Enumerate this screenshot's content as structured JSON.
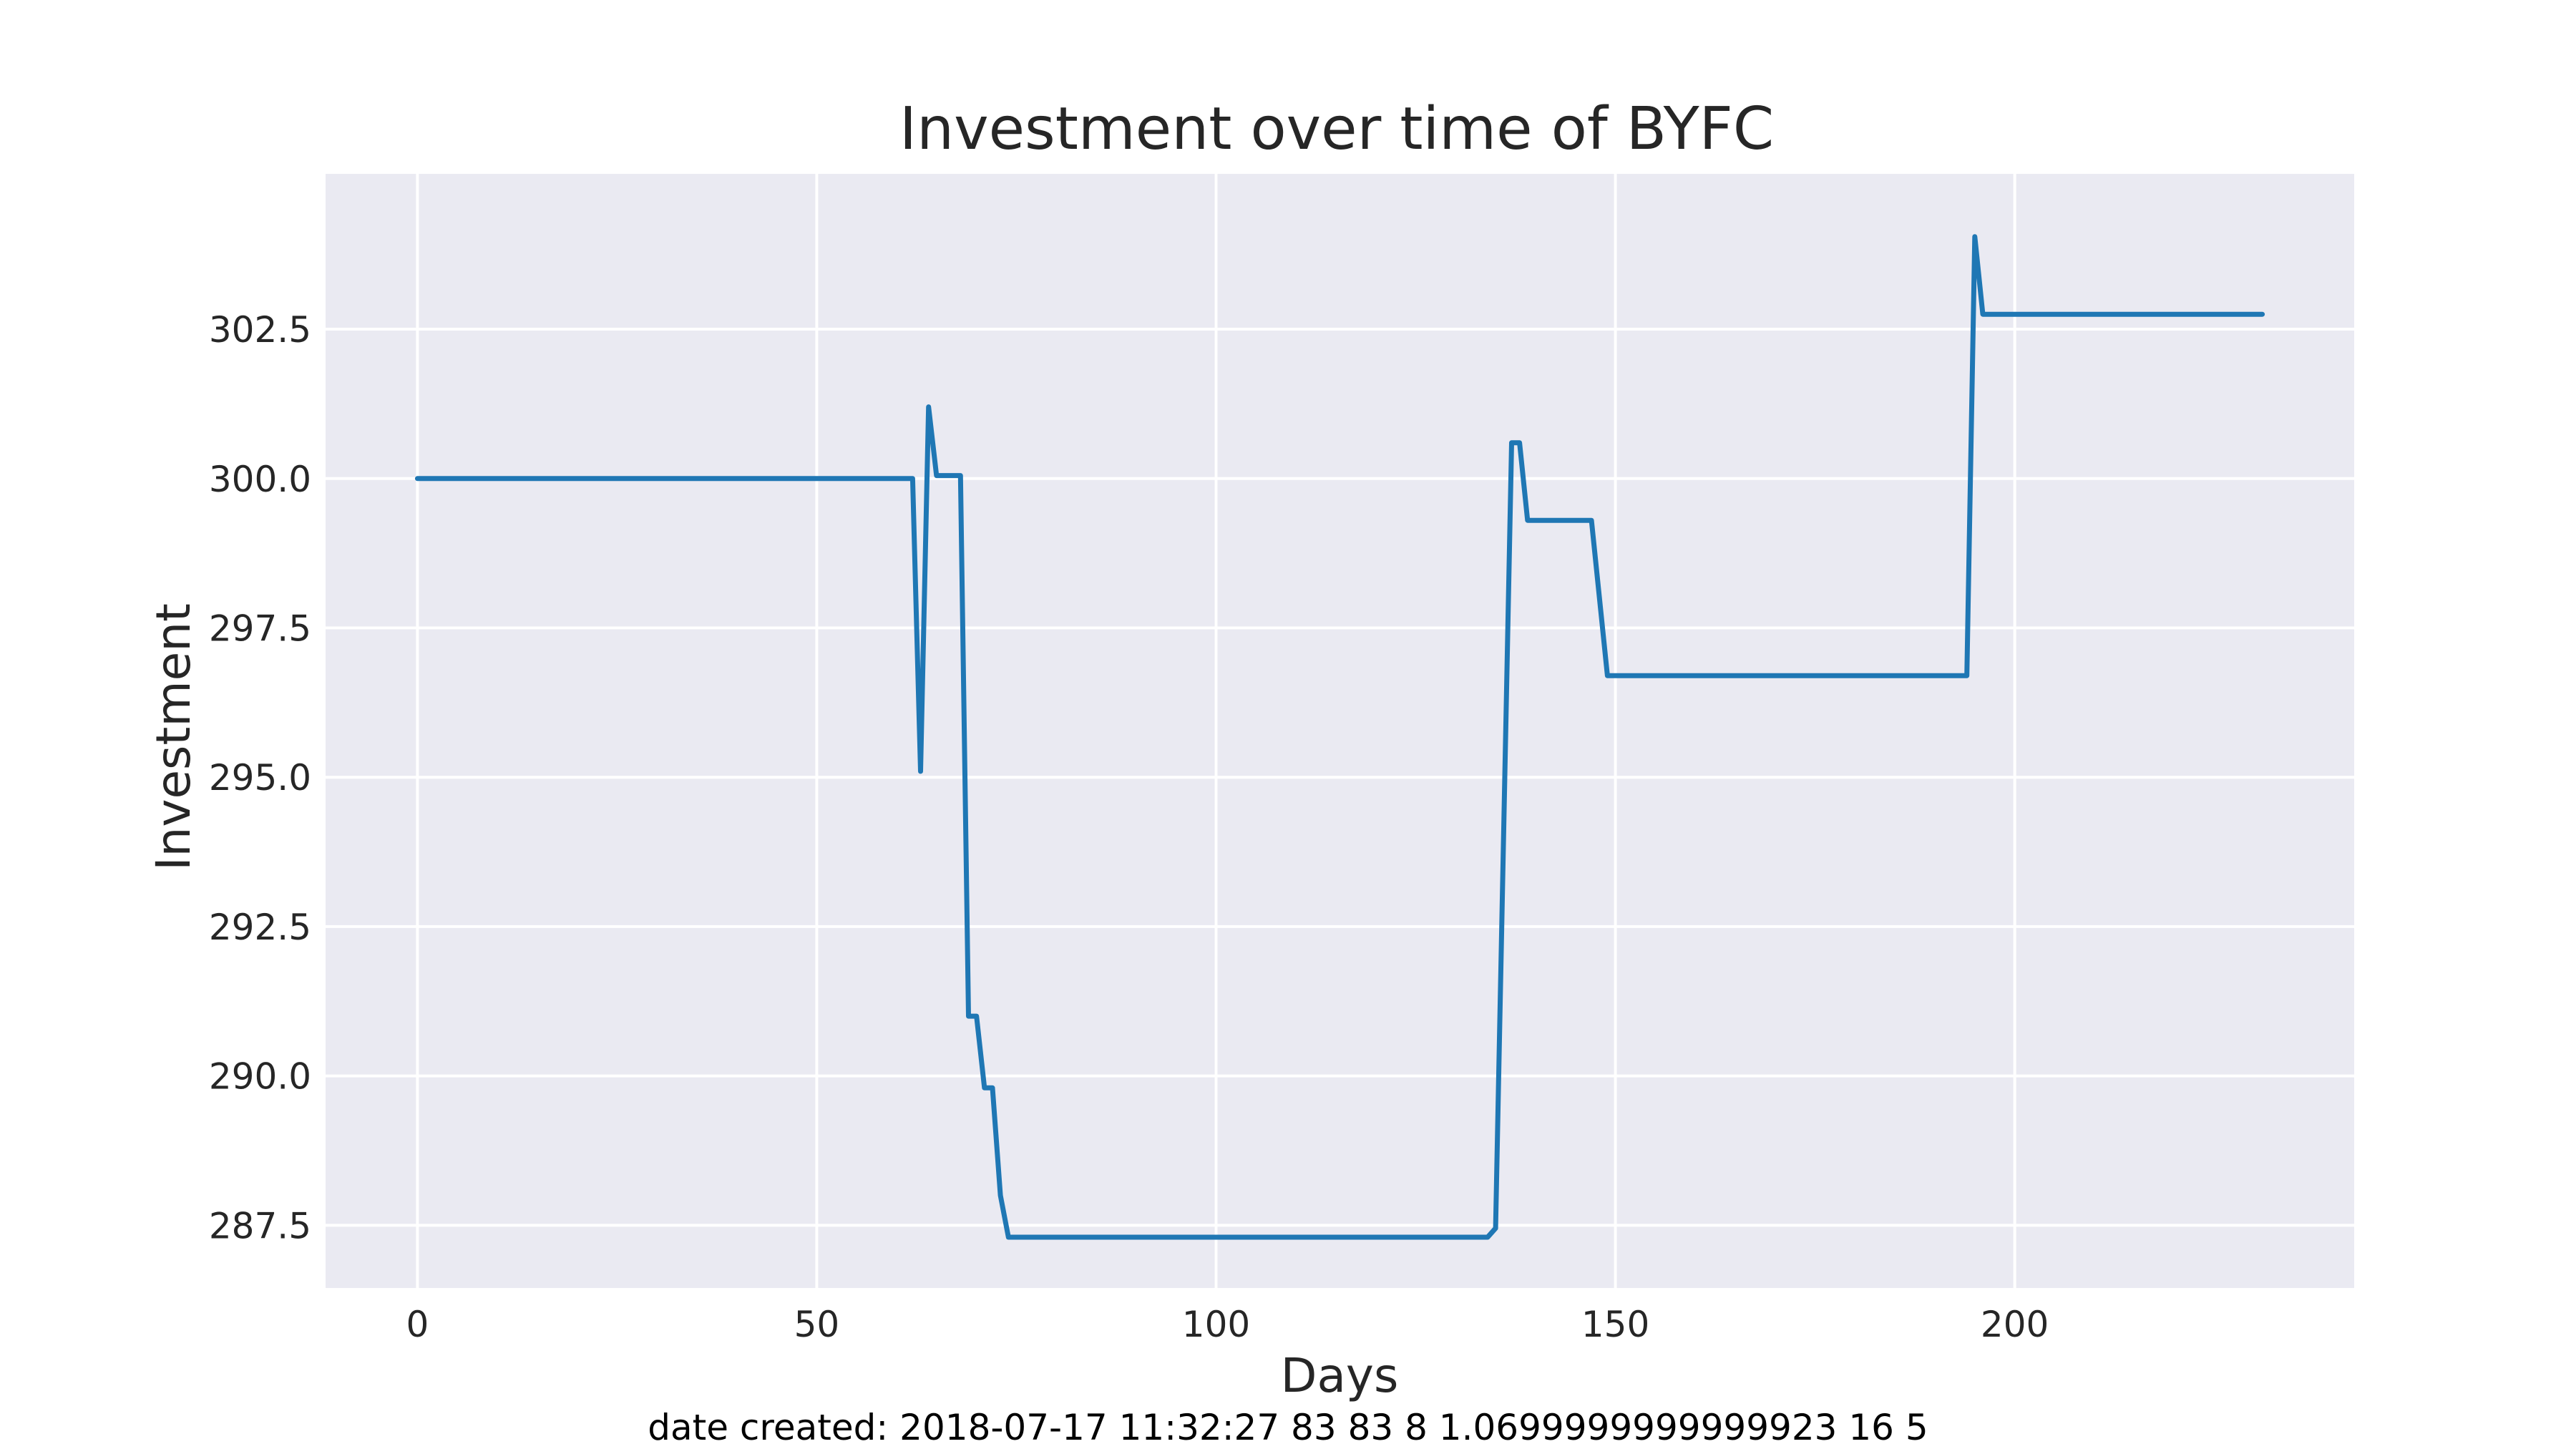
{
  "chart_data": {
    "type": "line",
    "title": "Investment over time of BYFC",
    "xlabel": "Days",
    "ylabel": "Investment",
    "xlim": [
      -11.5,
      242.5
    ],
    "ylim": [
      286.45,
      305.1
    ],
    "xticks": [
      0,
      50,
      100,
      150,
      200
    ],
    "xtick_labels": [
      "0",
      "50",
      "100",
      "150",
      "200"
    ],
    "yticks": [
      287.5,
      290.0,
      292.5,
      295.0,
      297.5,
      300.0,
      302.5
    ],
    "ytick_labels": [
      "287.5",
      "290.0",
      "292.5",
      "295.0",
      "297.5",
      "300.0",
      "302.5"
    ],
    "grid": true,
    "background": "#eaeaf2",
    "grid_color": "#ffffff",
    "series": [
      {
        "color": "#1f77b4",
        "x": [
          0,
          62,
          63,
          64,
          65,
          68,
          69,
          70,
          71,
          72,
          73,
          74,
          134,
          135,
          137,
          138,
          139,
          147,
          149,
          194,
          195,
          196,
          231
        ],
        "y": [
          300.0,
          300.0,
          295.1,
          301.2,
          300.05,
          300.05,
          291.0,
          291.0,
          289.8,
          289.8,
          288.0,
          287.3,
          287.3,
          287.45,
          300.6,
          300.6,
          299.3,
          299.3,
          296.7,
          296.7,
          304.05,
          302.75,
          302.75
        ]
      }
    ]
  },
  "footer": "date created: 2018-07-17 11:32:27 83 83 8 1.0699999999999923 16 5"
}
